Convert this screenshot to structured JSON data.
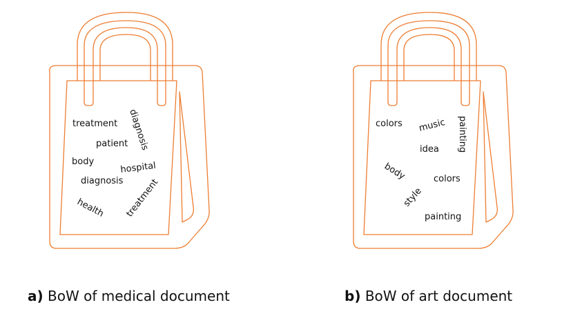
{
  "colors": {
    "bag_stroke": "#ED7D31",
    "text": "#111111"
  },
  "bags": [
    {
      "caption_tag": "a)",
      "caption_text": " BoW of medical document",
      "words": [
        "treatment",
        "diagnosis",
        "patient",
        "body",
        "hospital",
        "diagnosis",
        "health",
        "treatment"
      ]
    },
    {
      "caption_tag": "b)",
      "caption_text": " BoW of art document",
      "words": [
        "colors",
        "music",
        "painting",
        "idea",
        "body",
        "colors",
        "style",
        "painting"
      ]
    }
  ]
}
